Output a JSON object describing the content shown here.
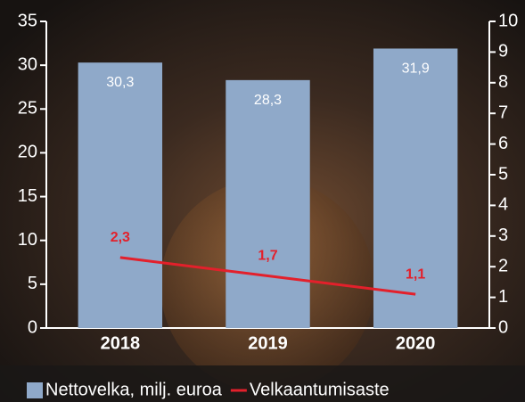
{
  "chart_data": {
    "type": "bar",
    "categories": [
      "2018",
      "2019",
      "2020"
    ],
    "series": [
      {
        "name": "Nettovelka, milj. euroa",
        "type": "bar",
        "color": "#8fa9c9",
        "values": [
          30.3,
          28.3,
          31.9
        ],
        "value_labels": [
          "30,3",
          "28,3",
          "31,9"
        ],
        "label_color": "#ffffff"
      },
      {
        "name": "Velkaantumisaste",
        "type": "line",
        "axis": "y2",
        "color": "#e3202b",
        "values": [
          2.3,
          1.7,
          1.1
        ],
        "value_labels": [
          "2,3",
          "1,7",
          "1,1"
        ],
        "label_color": "#e3202b"
      }
    ],
    "ylim": [
      0,
      35
    ],
    "yticks": [
      0,
      5,
      10,
      15,
      20,
      25,
      30,
      35
    ],
    "y2lim": [
      0,
      10
    ],
    "y2ticks": [
      0,
      1,
      2,
      3,
      4,
      5,
      6,
      7,
      8,
      9,
      10
    ],
    "legend": "bottom"
  }
}
